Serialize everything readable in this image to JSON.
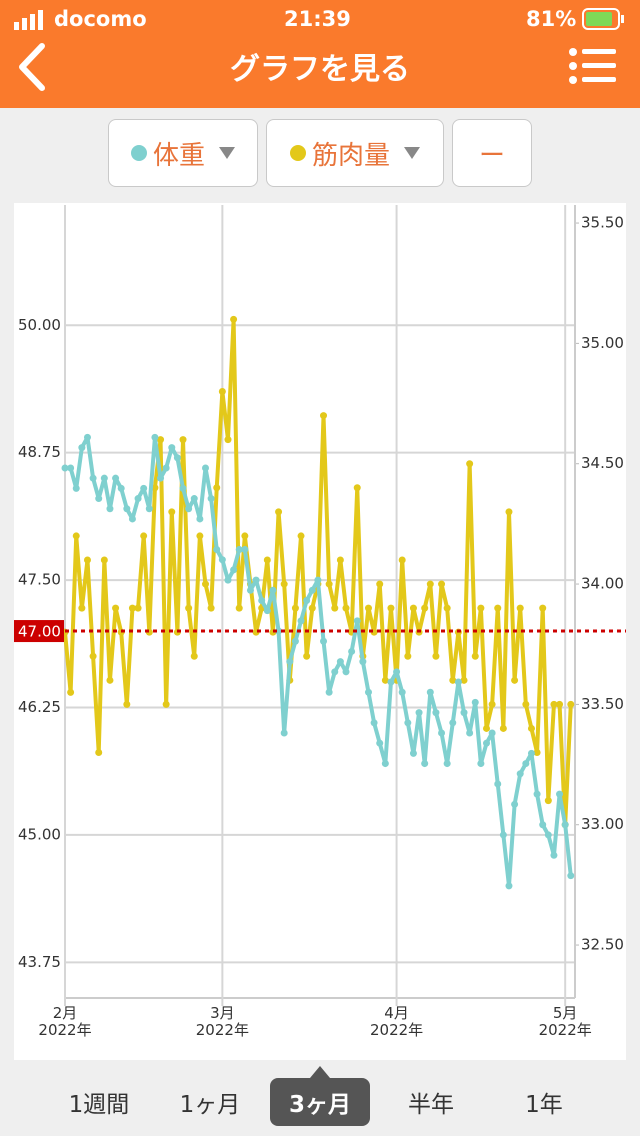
{
  "status_bar": {
    "carrier": "docomo",
    "time": "21:39",
    "battery": "81%"
  },
  "header": {
    "title": "グラフを見る"
  },
  "selectors": [
    "体重",
    "筋肉量",
    "ー"
  ],
  "tabs": {
    "items": [
      "1週間",
      "1ヶ月",
      "3ヶ月",
      "半年",
      "1年"
    ],
    "selected": 2
  },
  "chart_data": {
    "type": "line",
    "categories": [
      "2月\n2022年",
      null,
      null,
      null,
      null,
      null,
      null,
      null,
      null,
      null,
      null,
      null,
      null,
      null,
      null,
      null,
      null,
      null,
      null,
      null,
      null,
      null,
      null,
      null,
      null,
      null,
      null,
      null,
      "3月\n2022年",
      null,
      null,
      null,
      null,
      null,
      null,
      null,
      null,
      null,
      null,
      null,
      null,
      null,
      null,
      null,
      null,
      null,
      null,
      null,
      null,
      null,
      null,
      null,
      null,
      null,
      null,
      null,
      null,
      null,
      null,
      "4月\n2022年",
      null,
      null,
      null,
      null,
      null,
      null,
      null,
      null,
      null,
      null,
      null,
      null,
      null,
      null,
      null,
      null,
      null,
      null,
      null,
      null,
      null,
      null,
      null,
      null,
      null,
      null,
      null,
      null,
      null,
      "5月\n2022年",
      null
    ],
    "series": [
      {
        "name": "体重",
        "color": "#7fd0cf",
        "axis": "y",
        "values": [
          48.6,
          48.6,
          48.4,
          48.8,
          48.9,
          48.5,
          48.3,
          48.5,
          48.2,
          48.5,
          48.4,
          48.2,
          48.1,
          48.3,
          48.4,
          48.2,
          48.9,
          48.5,
          48.6,
          48.8,
          48.7,
          48.4,
          48.2,
          48.3,
          48.1,
          48.6,
          48.3,
          47.8,
          47.7,
          47.5,
          47.6,
          47.8,
          47.8,
          47.4,
          47.5,
          47.3,
          47.2,
          47.4,
          47.0,
          46.0,
          46.7,
          46.9,
          47.1,
          47.3,
          47.4,
          47.5,
          46.9,
          46.4,
          46.6,
          46.7,
          46.6,
          46.8,
          47.1,
          46.7,
          46.4,
          46.1,
          45.9,
          45.7,
          46.5,
          46.6,
          46.4,
          46.1,
          45.8,
          46.2,
          45.7,
          46.4,
          46.2,
          46.0,
          45.7,
          46.1,
          46.5,
          46.2,
          46.0,
          46.3,
          45.7,
          45.9,
          46.0,
          45.5,
          45.0,
          44.5,
          45.3,
          45.6,
          45.7,
          45.8,
          45.4,
          45.1,
          45.0,
          44.8,
          45.4,
          45.1,
          44.6
        ]
      },
      {
        "name": "筋肉量",
        "color": "#e3c81a",
        "axis": "y2",
        "values": [
          33.8,
          33.55,
          34.2,
          33.9,
          34.1,
          33.7,
          33.3,
          34.1,
          33.6,
          33.9,
          33.8,
          33.5,
          33.9,
          33.9,
          34.2,
          33.8,
          34.4,
          34.6,
          33.5,
          34.3,
          33.8,
          34.6,
          33.9,
          33.7,
          34.2,
          34.0,
          33.9,
          34.4,
          34.8,
          34.6,
          35.1,
          33.9,
          34.2,
          34.0,
          33.8,
          33.9,
          34.1,
          33.8,
          34.3,
          34.0,
          33.6,
          33.9,
          34.2,
          33.7,
          33.9,
          34.0,
          34.7,
          34.0,
          33.9,
          34.1,
          33.9,
          33.8,
          34.4,
          33.7,
          33.9,
          33.8,
          34.0,
          33.6,
          33.9,
          33.6,
          34.1,
          33.7,
          33.9,
          33.8,
          33.9,
          34.0,
          33.7,
          34.0,
          33.9,
          33.6,
          33.8,
          33.6,
          34.5,
          33.7,
          33.9,
          33.4,
          33.5,
          33.9,
          33.4,
          34.3,
          33.6,
          33.9,
          33.5,
          33.4,
          33.3,
          33.9,
          33.1,
          33.5,
          33.5,
          33.0,
          33.5
        ]
      }
    ],
    "ylim": [
      43.4,
      51.18
    ],
    "yticks": [
      {
        "value": 43.75,
        "label": "43.75"
      },
      {
        "value": 45,
        "label": "45.00"
      },
      {
        "value": 46.25,
        "label": "46.25"
      },
      {
        "value": 47.5,
        "label": "47.50"
      },
      {
        "value": 48.75,
        "label": "48.75"
      },
      {
        "value": 50,
        "label": "50.00"
      }
    ],
    "y2lim": [
      32.28,
      35.575
    ],
    "y2ticks": [
      {
        "value": 32.5,
        "label": "32.50"
      },
      {
        "value": 33,
        "label": "33.00"
      },
      {
        "value": 33.5,
        "label": "33.50"
      },
      {
        "value": 34,
        "label": "34.00"
      },
      {
        "value": 34.5,
        "label": "34.50"
      },
      {
        "value": 35,
        "label": "35.00"
      },
      {
        "value": 35.5,
        "label": "35.50"
      }
    ],
    "reference_line": {
      "value": 47,
      "label": "47.00",
      "color": "#cc0000"
    },
    "grid": true
  }
}
